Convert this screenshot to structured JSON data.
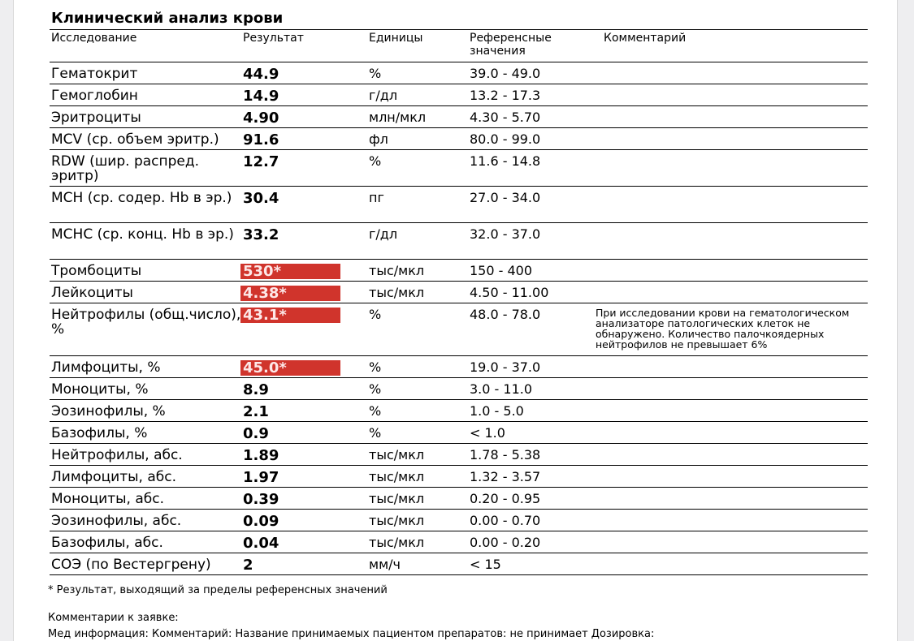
{
  "title": "Клинический анализ крови",
  "headers": {
    "test": "Исследование",
    "result": "Результат",
    "units": "Единицы",
    "ref": "Референсные значения",
    "comment": "Комментарий"
  },
  "rows": [
    {
      "name": "Гематокрит",
      "result": "44.9",
      "abnormal": false,
      "units": "%",
      "ref": "39.0 - 49.0",
      "comment": ""
    },
    {
      "name": "Гемоглобин",
      "result": "14.9",
      "abnormal": false,
      "units": "г/дл",
      "ref": "13.2 - 17.3",
      "comment": ""
    },
    {
      "name": "Эритроциты",
      "result": "4.90",
      "abnormal": false,
      "units": "млн/мкл",
      "ref": "4.30 - 5.70",
      "comment": ""
    },
    {
      "name": "MCV (ср. объем эритр.)",
      "result": "91.6",
      "abnormal": false,
      "units": "фл",
      "ref": "80.0 - 99.0",
      "comment": ""
    },
    {
      "name": "RDW (шир. распред. эритр)",
      "result": "12.7",
      "abnormal": false,
      "units": "%",
      "ref": "11.6 - 14.8",
      "comment": ""
    },
    {
      "name": "MCH (ср. содер. Hb в эр.)",
      "result": "30.4",
      "abnormal": false,
      "units": "пг",
      "ref": "27.0 - 34.0",
      "comment": ""
    },
    {
      "name": "MCHC (ср. конц. Hb в эр.)",
      "result": "33.2",
      "abnormal": false,
      "units": "г/дл",
      "ref": "32.0 - 37.0",
      "comment": ""
    },
    {
      "name": "Тромбоциты",
      "result": "530*",
      "abnormal": true,
      "units": "тыс/мкл",
      "ref": "150 - 400",
      "comment": ""
    },
    {
      "name": "Лейкоциты",
      "result": "4.38*",
      "abnormal": true,
      "units": "тыс/мкл",
      "ref": "4.50 - 11.00",
      "comment": ""
    },
    {
      "name": "Нейтрофилы (общ.число), %",
      "result": "43.1*",
      "abnormal": true,
      "units": "%",
      "ref": "48.0 - 78.0",
      "comment": "При исследовании крови на гематологическом анализаторе патологических клеток не обнаружено. Количество палочкоядерных нейтрофилов не превышает 6%"
    },
    {
      "name": "Лимфоциты, %",
      "result": "45.0*",
      "abnormal": true,
      "units": "%",
      "ref": "19.0 - 37.0",
      "comment": ""
    },
    {
      "name": "Моноциты, %",
      "result": "8.9",
      "abnormal": false,
      "units": "%",
      "ref": "3.0 - 11.0",
      "comment": ""
    },
    {
      "name": "Эозинофилы, %",
      "result": "2.1",
      "abnormal": false,
      "units": "%",
      "ref": "1.0 - 5.0",
      "comment": ""
    },
    {
      "name": "Базофилы, %",
      "result": "0.9",
      "abnormal": false,
      "units": "%",
      "ref": "< 1.0",
      "comment": ""
    },
    {
      "name": "Нейтрофилы, абс.",
      "result": "1.89",
      "abnormal": false,
      "units": "тыс/мкл",
      "ref": "1.78 - 5.38",
      "comment": ""
    },
    {
      "name": "Лимфоциты, абс.",
      "result": "1.97",
      "abnormal": false,
      "units": "тыс/мкл",
      "ref": "1.32 - 3.57",
      "comment": ""
    },
    {
      "name": "Моноциты, абс.",
      "result": "0.39",
      "abnormal": false,
      "units": "тыс/мкл",
      "ref": "0.20 - 0.95",
      "comment": ""
    },
    {
      "name": "Эозинофилы, абс.",
      "result": "0.09",
      "abnormal": false,
      "units": "тыс/мкл",
      "ref": "0.00 - 0.70",
      "comment": ""
    },
    {
      "name": "Базофилы, абс.",
      "result": "0.04",
      "abnormal": false,
      "units": "тыс/мкл",
      "ref": "0.00 - 0.20",
      "comment": ""
    },
    {
      "name": "СОЭ (по Вестергрену)",
      "result": "2",
      "abnormal": false,
      "units": "мм/ч",
      "ref": "< 15",
      "comment": ""
    }
  ],
  "footnote": "* Результат, выходящий за пределы референсных значений",
  "order_comments_label": "Комментарии к заявке:",
  "med_info": "Мед информация: Комментарий: Название принимаемых пациентом препаратов: не принимает Дозировка:",
  "colors": {
    "abnormal_bg": "#d0342c"
  }
}
